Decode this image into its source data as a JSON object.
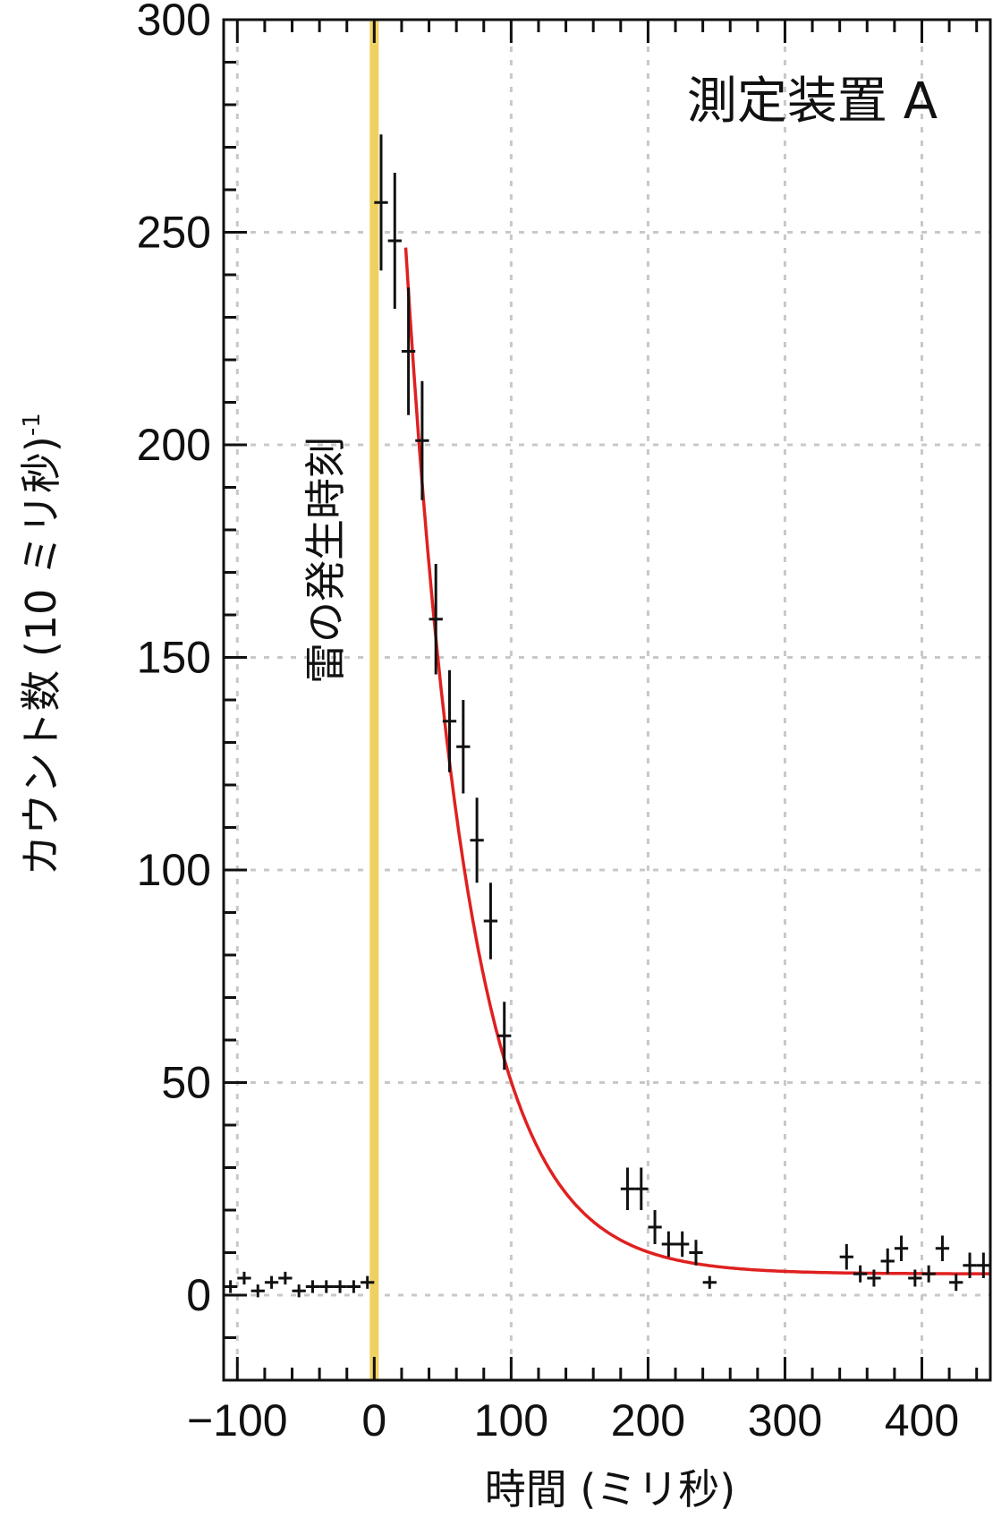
{
  "chart_data": {
    "type": "scatter",
    "title": "",
    "xlabel": "時間 (ミリ秒)",
    "ylabel": "カウント数 (10 ミリ秒)",
    "ylabel_sup": "-1",
    "xlim": [
      -110,
      450
    ],
    "ylim": [
      -20,
      300
    ],
    "xticks": [
      -100,
      0,
      100,
      200,
      300,
      400
    ],
    "xtick_labels": [
      "−100",
      "0",
      "100",
      "200",
      "300",
      "400"
    ],
    "yticks": [
      0,
      50,
      100,
      150,
      200,
      250,
      300
    ],
    "ytick_labels": [
      "0",
      "50",
      "100",
      "150",
      "200",
      "250",
      "300"
    ],
    "grid": true,
    "annotation": "測定装置 A",
    "event_line": {
      "x": 0,
      "label": "雷の発生時刻",
      "color": "#f0d060"
    },
    "series": [
      {
        "kind": "data",
        "color": "#111111",
        "x_half_width": 5,
        "points": [
          {
            "x": -105,
            "y": 2,
            "err": 0
          },
          {
            "x": -95,
            "y": 4,
            "err": 1
          },
          {
            "x": -85,
            "y": 1,
            "err": 0
          },
          {
            "x": -75,
            "y": 3,
            "err": 1
          },
          {
            "x": -65,
            "y": 4,
            "err": 1
          },
          {
            "x": -55,
            "y": 1,
            "err": 0
          },
          {
            "x": -45,
            "y": 2,
            "err": 0
          },
          {
            "x": -35,
            "y": 2,
            "err": 0
          },
          {
            "x": -25,
            "y": 2,
            "err": 0
          },
          {
            "x": -15,
            "y": 2,
            "err": 0
          },
          {
            "x": -5,
            "y": 3,
            "err": 1
          },
          {
            "x": 5,
            "y": 257,
            "err": 16
          },
          {
            "x": 15,
            "y": 248,
            "err": 16
          },
          {
            "x": 25,
            "y": 222,
            "err": 15
          },
          {
            "x": 35,
            "y": 201,
            "err": 14
          },
          {
            "x": 45,
            "y": 159,
            "err": 13
          },
          {
            "x": 55,
            "y": 135,
            "err": 12
          },
          {
            "x": 65,
            "y": 129,
            "err": 11
          },
          {
            "x": 75,
            "y": 107,
            "err": 10
          },
          {
            "x": 85,
            "y": 88,
            "err": 9
          },
          {
            "x": 95,
            "y": 61,
            "err": 8
          },
          {
            "x": 185,
            "y": 25,
            "err": 5
          },
          {
            "x": 195,
            "y": 25,
            "err": 5
          },
          {
            "x": 205,
            "y": 16,
            "err": 4
          },
          {
            "x": 215,
            "y": 12,
            "err": 3
          },
          {
            "x": 225,
            "y": 12,
            "err": 3
          },
          {
            "x": 235,
            "y": 10,
            "err": 3
          },
          {
            "x": 245,
            "y": 3,
            "err": 1
          },
          {
            "x": 345,
            "y": 9,
            "err": 3
          },
          {
            "x": 355,
            "y": 5,
            "err": 2
          },
          {
            "x": 365,
            "y": 4,
            "err": 2
          },
          {
            "x": 375,
            "y": 8,
            "err": 3
          },
          {
            "x": 385,
            "y": 11,
            "err": 3
          },
          {
            "x": 395,
            "y": 4,
            "err": 2
          },
          {
            "x": 405,
            "y": 5,
            "err": 2
          },
          {
            "x": 415,
            "y": 11,
            "err": 3
          },
          {
            "x": 425,
            "y": 3,
            "err": 2
          },
          {
            "x": 435,
            "y": 7,
            "err": 3
          },
          {
            "x": 445,
            "y": 7,
            "err": 3
          }
        ]
      },
      {
        "kind": "fit",
        "color": "#e02020",
        "model": "exponential",
        "x_start": 23,
        "x_end": 450,
        "amplitude": 398,
        "tau_ms": 46,
        "baseline": 5
      }
    ]
  }
}
